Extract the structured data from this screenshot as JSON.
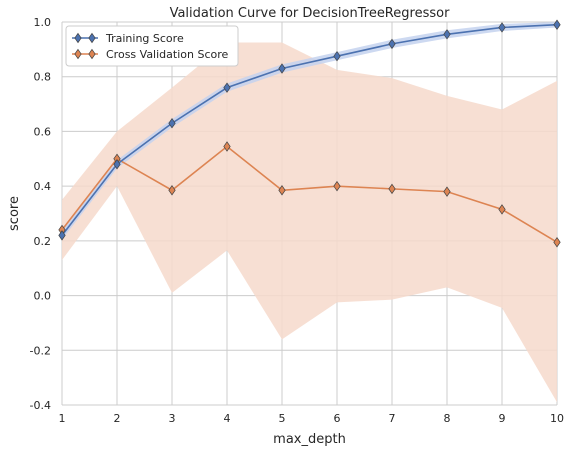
{
  "chart_data": {
    "type": "line",
    "title": "Validation Curve for DecisionTreeRegressor",
    "xlabel": "max_depth",
    "ylabel": "score",
    "xlim": [
      1,
      10
    ],
    "ylim": [
      -0.4,
      1.0
    ],
    "xticks": [
      "1",
      "2",
      "3",
      "4",
      "5",
      "6",
      "7",
      "8",
      "9",
      "10"
    ],
    "yticks": [
      "-0.4",
      "-0.2",
      "0.0",
      "0.2",
      "0.4",
      "0.6",
      "0.8",
      "1.0"
    ],
    "grid": true,
    "legend_position": "top-left",
    "x": [
      1,
      2,
      3,
      4,
      5,
      6,
      7,
      8,
      9,
      10
    ],
    "series": [
      {
        "name": "Training Score",
        "color": "#4c72b0",
        "band_color": "#c4d2ee",
        "marker": "diamond",
        "values": [
          0.22,
          0.48,
          0.63,
          0.76,
          0.83,
          0.875,
          0.92,
          0.955,
          0.98,
          0.99
        ],
        "lower": [
          0.205,
          0.465,
          0.615,
          0.745,
          0.815,
          0.86,
          0.905,
          0.94,
          0.967,
          0.98
        ],
        "upper": [
          0.235,
          0.495,
          0.645,
          0.775,
          0.845,
          0.89,
          0.935,
          0.97,
          0.993,
          1.0
        ]
      },
      {
        "name": "Cross Validation Score",
        "color": "#dd8452",
        "band_color": "#f6d9cb",
        "marker": "diamond",
        "values": [
          0.24,
          0.5,
          0.385,
          0.545,
          0.385,
          0.4,
          0.39,
          0.38,
          0.315,
          0.195
        ],
        "lower": [
          0.13,
          0.4,
          0.01,
          0.165,
          -0.16,
          -0.025,
          -0.015,
          0.03,
          -0.045,
          -0.39
        ],
        "upper": [
          0.35,
          0.6,
          0.76,
          0.925,
          0.925,
          0.825,
          0.795,
          0.73,
          0.68,
          0.785
        ]
      }
    ]
  }
}
